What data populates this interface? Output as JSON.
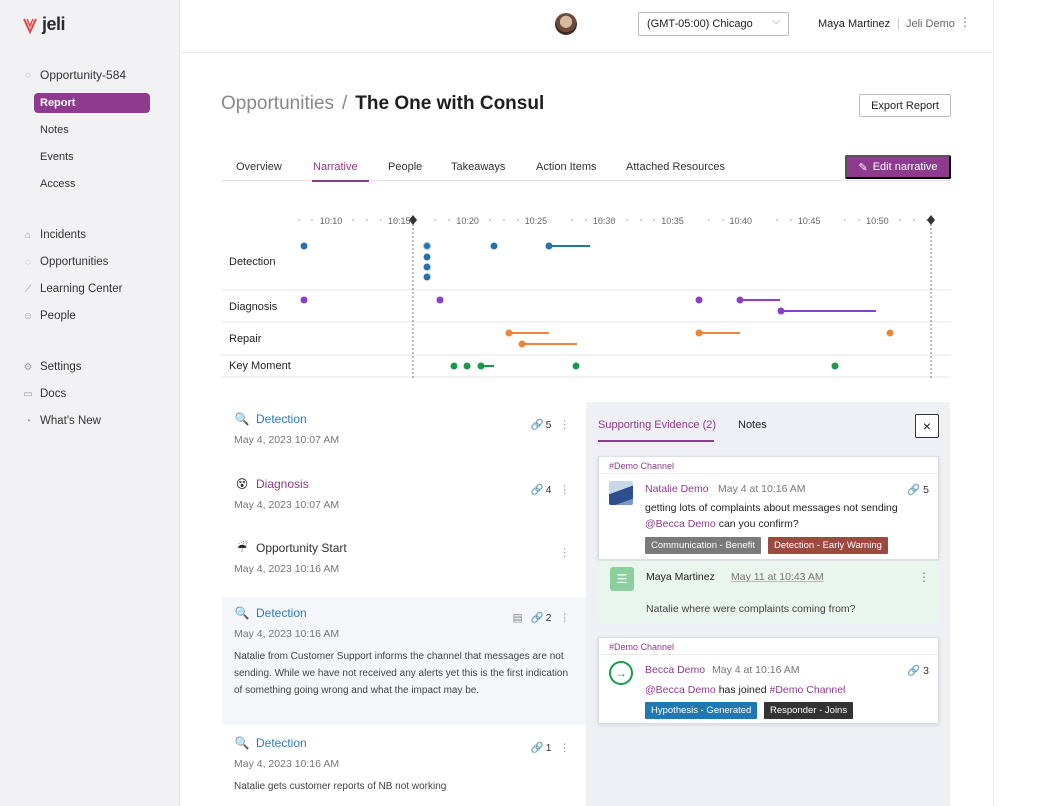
{
  "brand": {
    "name": "jeli",
    "accent": "#8e3a8e"
  },
  "sidebar": {
    "opportunity": "Opportunity-584",
    "sub": [
      {
        "label": "Report"
      },
      {
        "label": "Notes"
      },
      {
        "label": "Events"
      },
      {
        "label": "Access"
      }
    ],
    "nav": [
      {
        "label": "Incidents"
      },
      {
        "label": "Opportunities"
      },
      {
        "label": "Learning Center"
      },
      {
        "label": "People"
      }
    ],
    "misc": [
      {
        "label": "Settings"
      },
      {
        "label": "Docs"
      },
      {
        "label": "What's New"
      }
    ]
  },
  "header": {
    "timezone": "(GMT-05:00) Chicago",
    "user": "Maya Martinez",
    "org": "Jeli Demo"
  },
  "page": {
    "parent": "Opportunities",
    "separator": "/",
    "title": "The One with Consul",
    "export_label": "Export Report"
  },
  "tabs": [
    {
      "label": "Overview"
    },
    {
      "label": "Narrative"
    },
    {
      "label": "People"
    },
    {
      "label": "Takeaways"
    },
    {
      "label": "Action Items"
    },
    {
      "label": "Attached Resources"
    }
  ],
  "edit_label": "Edit narrative",
  "timeline": {
    "ticks": [
      "10:10",
      "10:15",
      "10:20",
      "10:25",
      "10:30",
      "10:35",
      "10:40",
      "10:45",
      "10:50"
    ],
    "rows": [
      "Detection",
      "Diagnosis",
      "Repair",
      "Key Moment"
    ],
    "colors": {
      "Detection": "#2672b0",
      "Diagnosis": "#8a3fc4",
      "Repair": "#f0843c",
      "Key Moment": "#1a9a48"
    }
  },
  "events": [
    {
      "icon": "magnifier-icon",
      "emoji": "🔍",
      "title": "Detection",
      "date": "May 4, 2023 10:07 AM",
      "links": "5",
      "body": ""
    },
    {
      "icon": "confused-face-icon",
      "emoji": "😵",
      "title": "Diagnosis",
      "date": "May 4, 2023 10:07 AM",
      "links": "4",
      "body": ""
    },
    {
      "icon": "umbrella-icon",
      "emoji": "☔",
      "title": "Opportunity Start",
      "date": "May 4, 2023 10:16 AM",
      "links": "",
      "body": ""
    },
    {
      "icon": "magnifier-icon",
      "emoji": "🔍",
      "title": "Detection",
      "date": "May 4, 2023 10:16 AM",
      "links": "2",
      "body": "Natalie from Customer Support informs the channel that messages are not sending. While we have not received any alerts yet this is the first indication of something going wrong and what the impact may be."
    },
    {
      "icon": "magnifier-icon",
      "emoji": "🔍",
      "title": "Detection",
      "date": "May 4, 2023 10:16 AM",
      "links": "1",
      "body": "Natalie gets customer reports of NB not working"
    }
  ],
  "panel": {
    "tab_evidence": "Supporting Evidence (2)",
    "tab_notes": "Notes",
    "close": "×",
    "card1": {
      "channel": "#Demo Channel",
      "name": "Natalie Demo",
      "time": "May 4 at 10:16 AM",
      "links": "5",
      "text": "getting lots of complaints about messages not sending",
      "mention": "@Becca Demo",
      "text2": " can you confirm?",
      "tags": [
        {
          "label": "Communication - Benefit",
          "color": "#7a7a7a"
        },
        {
          "label": "Detection - Early Warning",
          "color": "#9a4a3e"
        }
      ]
    },
    "note": {
      "name": "Maya Martinez",
      "time": "May 11 at 10:43 AM",
      "text": "Natalie where were complaints coming from?"
    },
    "card2": {
      "channel": "#Demo Channel",
      "name": "Becca Demo",
      "time": "May 4 at 10:16 AM",
      "links": "3",
      "mention": "@Becca Demo",
      "text": " has joined ",
      "channel_mention": "#Demo Channel",
      "tags": [
        {
          "label": "Hypothesis - Generated",
          "color": "#1e78b4"
        },
        {
          "label": "Responder - Joins",
          "color": "#333333"
        }
      ]
    }
  }
}
